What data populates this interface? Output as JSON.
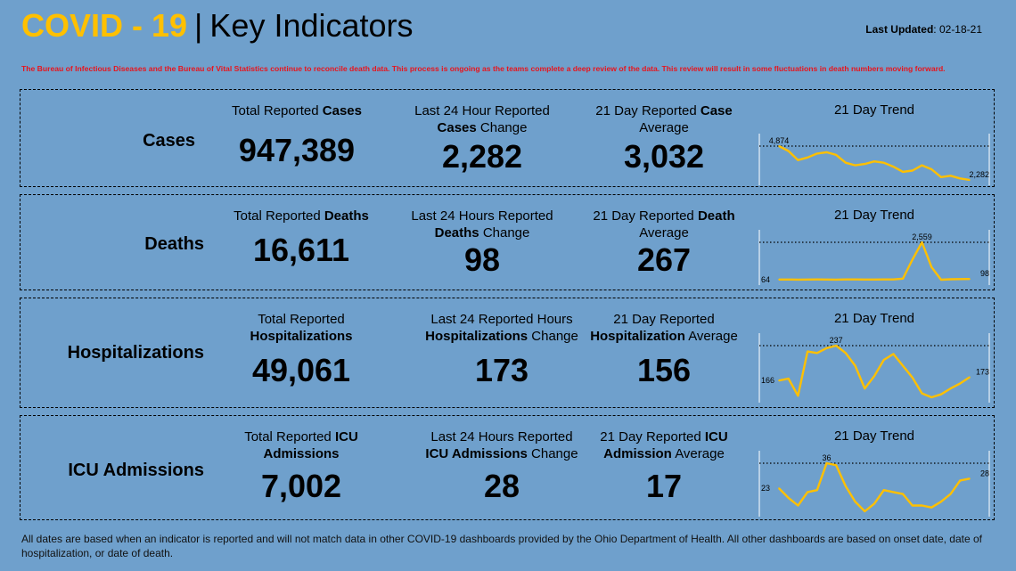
{
  "header": {
    "title_accent": "COVID - 19",
    "title_sep": "|",
    "title_main": "Key Indicators",
    "updated_label": "Last Updated",
    "updated_value": ": 02-18-21"
  },
  "notice": "The Bureau of Infectious Diseases and the Bureau of Vital Statistics continue to reconcile death data. This process is ongoing as the teams complete a deep review of the data. This review will result in some fluctuations in death numbers moving forward.",
  "colors": {
    "accent": "#ffc000",
    "notice": "#e8141c",
    "background": "#6fa0cc",
    "trend_line": "#ffc000"
  },
  "rows": [
    {
      "label": "Cases",
      "total": {
        "pre": "Total Reported ",
        "bold": "Cases",
        "post": "",
        "pre2": "",
        "bold2": "",
        "post2": "",
        "value": "947,389"
      },
      "change": {
        "pre": "Last 24 Hour Reported",
        "bold": "Cases",
        "post": " Change",
        "value": "2,282"
      },
      "average": {
        "pre": "21 Day Reported ",
        "bold": "Case",
        "post": "Average",
        "value": "3,032"
      },
      "trend": {
        "title": "21 Day Trend",
        "max_label": "4,874",
        "end_label": "2,282",
        "start_label": ""
      }
    },
    {
      "label": "Deaths",
      "total": {
        "pre": "Total Reported ",
        "bold": "Deaths",
        "post": "",
        "value": "16,611"
      },
      "change": {
        "pre": "Last 24 Hours Reported",
        "bold": "Deaths",
        "post": " Change",
        "value": "98"
      },
      "average": {
        "pre": "21 Day Reported ",
        "bold": "Death",
        "post": "Average",
        "value": "267"
      },
      "trend": {
        "title": "21 Day Trend",
        "max_label": "2,559",
        "end_label": "98",
        "start_label": "64"
      }
    },
    {
      "label": "Hospitalizations",
      "total": {
        "pre": "Total Reported",
        "bold": "Hospitalizations",
        "post": "",
        "value": "49,061"
      },
      "change": {
        "pre": "Last 24 Reported Hours",
        "bold": "Hospitalizations",
        "post": " Change",
        "value": "173"
      },
      "average": {
        "pre": "21 Day Reported",
        "bold": "Hospitalization",
        "post": " Average",
        "value": "156"
      },
      "trend": {
        "title": "21 Day Trend",
        "max_label": "237",
        "end_label": "173",
        "start_label": "166"
      }
    },
    {
      "label": "ICU Admissions",
      "total": {
        "pre": "Total Reported ",
        "bold": "ICU",
        "post": "Admissions",
        "value": "7,002"
      },
      "change": {
        "pre": "Last 24 Hours Reported",
        "bold": "ICU Admissions",
        "post": " Change",
        "value": "28"
      },
      "average": {
        "pre": "21 Day Reported ",
        "bold": "ICU",
        "post": "Admission",
        "value": "17"
      },
      "trend": {
        "title": "21 Day Trend",
        "max_label": "36",
        "end_label": "28",
        "start_label": "23"
      }
    }
  ],
  "chart_data": [
    {
      "type": "line",
      "title": "21 Day Trend",
      "series": [
        {
          "values": [
            4874,
            4500,
            3800,
            4000,
            4300,
            4400,
            4200,
            3600,
            3400,
            3500,
            3700,
            3600,
            3300,
            2900,
            3000,
            3400,
            3100,
            2500,
            2600,
            2400,
            2282
          ]
        }
      ],
      "max_ref": 4874
    },
    {
      "type": "line",
      "title": "21 Day Trend",
      "series": [
        {
          "values": [
            64,
            60,
            58,
            62,
            65,
            60,
            55,
            70,
            66,
            60,
            64,
            68,
            70,
            120,
            1400,
            2559,
            900,
            50,
            80,
            90,
            98
          ]
        }
      ],
      "max_ref": 2559
    },
    {
      "type": "line",
      "title": "21 Day Trend",
      "series": [
        {
          "values": [
            166,
            170,
            135,
            225,
            222,
            232,
            237,
            222,
            196,
            150,
            175,
            208,
            220,
            196,
            172,
            140,
            132,
            138,
            150,
            160,
            173
          ]
        }
      ],
      "max_ref": 237
    },
    {
      "type": "line",
      "title": "21 Day Trend",
      "series": [
        {
          "values": [
            23,
            18,
            14,
            21,
            22,
            36,
            35,
            24,
            16,
            11,
            15,
            22,
            21,
            20,
            14,
            14,
            13,
            16,
            20,
            27,
            28
          ]
        }
      ],
      "max_ref": 36
    }
  ],
  "footer": "All dates are based when an indicator is reported and will not match data in other COVID-19 dashboards provided by the Ohio Department of Health. All other dashboards are based on onset date, date of hospitalization, or date of death."
}
